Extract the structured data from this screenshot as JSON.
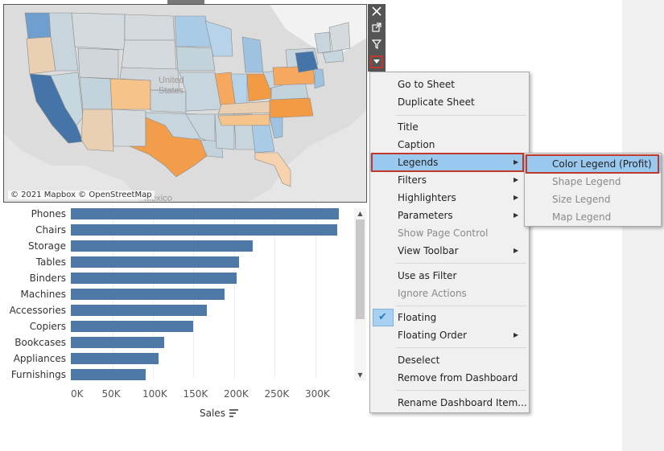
{
  "map": {
    "attribution": "© 2021 Mapbox © OpenStreetMap",
    "faint_labels": [
      "United",
      "States",
      "Mexico"
    ]
  },
  "toolbar": {
    "close_icon": "close-icon",
    "popout_icon": "external-link-icon",
    "filter_icon": "filter-icon",
    "more_icon": "dropdown-icon"
  },
  "chart_data": {
    "type": "bar",
    "orientation": "horizontal",
    "categories": [
      "Phones",
      "Chairs",
      "Storage",
      "Tables",
      "Binders",
      "Machines",
      "Accessories",
      "Copiers",
      "Bookcases",
      "Appliances",
      "Furnishings"
    ],
    "values": [
      330000,
      328000,
      224000,
      207000,
      204000,
      189000,
      167000,
      150000,
      115000,
      108000,
      92000
    ],
    "x_ticks": [
      "0K",
      "50K",
      "100K",
      "150K",
      "200K",
      "250K",
      "300K"
    ],
    "xlabel": "Sales",
    "xlim": [
      0,
      340000
    ],
    "grid": true,
    "bar_color": "#4e79a7"
  },
  "menu": {
    "items": [
      {
        "label": "Go to Sheet"
      },
      {
        "label": "Duplicate Sheet"
      },
      {
        "label": "Title"
      },
      {
        "label": "Caption"
      },
      {
        "label": "Legends"
      },
      {
        "label": "Filters"
      },
      {
        "label": "Highlighters"
      },
      {
        "label": "Parameters"
      },
      {
        "label": "Show Page Control"
      },
      {
        "label": "View Toolbar"
      },
      {
        "label": "Use as Filter"
      },
      {
        "label": "Ignore Actions"
      },
      {
        "label": "Floating"
      },
      {
        "label": "Floating Order"
      },
      {
        "label": "Deselect"
      },
      {
        "label": "Remove from Dashboard"
      },
      {
        "label": "Rename Dashboard Item..."
      }
    ]
  },
  "submenu": {
    "items": [
      {
        "label": "Color Legend (Profit)"
      },
      {
        "label": "Shape Legend"
      },
      {
        "label": "Size Legend"
      },
      {
        "label": "Map Legend"
      }
    ]
  },
  "colors": {
    "highlight": "#99c9ef",
    "accent_border": "#c0392b",
    "bar": "#4e79a7"
  }
}
